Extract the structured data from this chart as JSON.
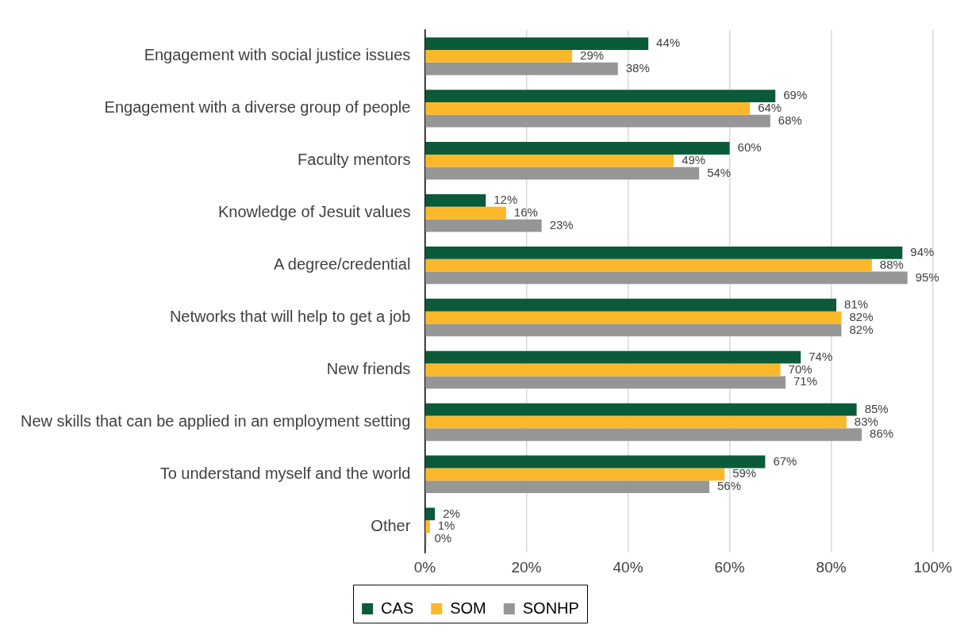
{
  "chart_data": {
    "type": "bar",
    "orientation": "horizontal",
    "categories": [
      "Engagement with social justice issues",
      "Engagement with a diverse group of people",
      "Faculty mentors",
      "Knowledge of Jesuit values",
      "A degree/credential",
      "Networks that will help to get a job",
      "New friends",
      "New skills that can be applied in an employment setting",
      "To understand myself and the world",
      "Other"
    ],
    "series": [
      {
        "name": "CAS",
        "color": "#0b5a3a",
        "values": [
          44,
          69,
          60,
          12,
          94,
          81,
          74,
          85,
          67,
          2
        ],
        "value_labels": [
          "44%",
          "69%",
          "60%",
          "12%",
          "94%",
          "81%",
          "74%",
          "85%",
          "67%",
          "2%"
        ]
      },
      {
        "name": "SOM",
        "color": "#fbb82b",
        "values": [
          29,
          64,
          49,
          16,
          88,
          82,
          70,
          83,
          59,
          1
        ],
        "value_labels": [
          "29%",
          "64%",
          "49%",
          "16%",
          "88%",
          "82%",
          "70%",
          "83%",
          "59%",
          "1%"
        ]
      },
      {
        "name": "SONHP",
        "color": "#969696",
        "values": [
          38,
          68,
          54,
          23,
          95,
          82,
          71,
          86,
          56,
          0
        ],
        "value_labels": [
          "38%",
          "68%",
          "54%",
          "23%",
          "95%",
          "82%",
          "71%",
          "86%",
          "56%",
          "0%"
        ]
      }
    ],
    "xlim": [
      0,
      100
    ],
    "xticks": [
      {
        "value": 0,
        "label": "0%"
      },
      {
        "value": 20,
        "label": "20%"
      },
      {
        "value": 40,
        "label": "40%"
      },
      {
        "value": 60,
        "label": "60%"
      },
      {
        "value": 80,
        "label": "80%"
      },
      {
        "value": 100,
        "label": "100%"
      }
    ],
    "grid": "x",
    "legend": "bottom"
  }
}
